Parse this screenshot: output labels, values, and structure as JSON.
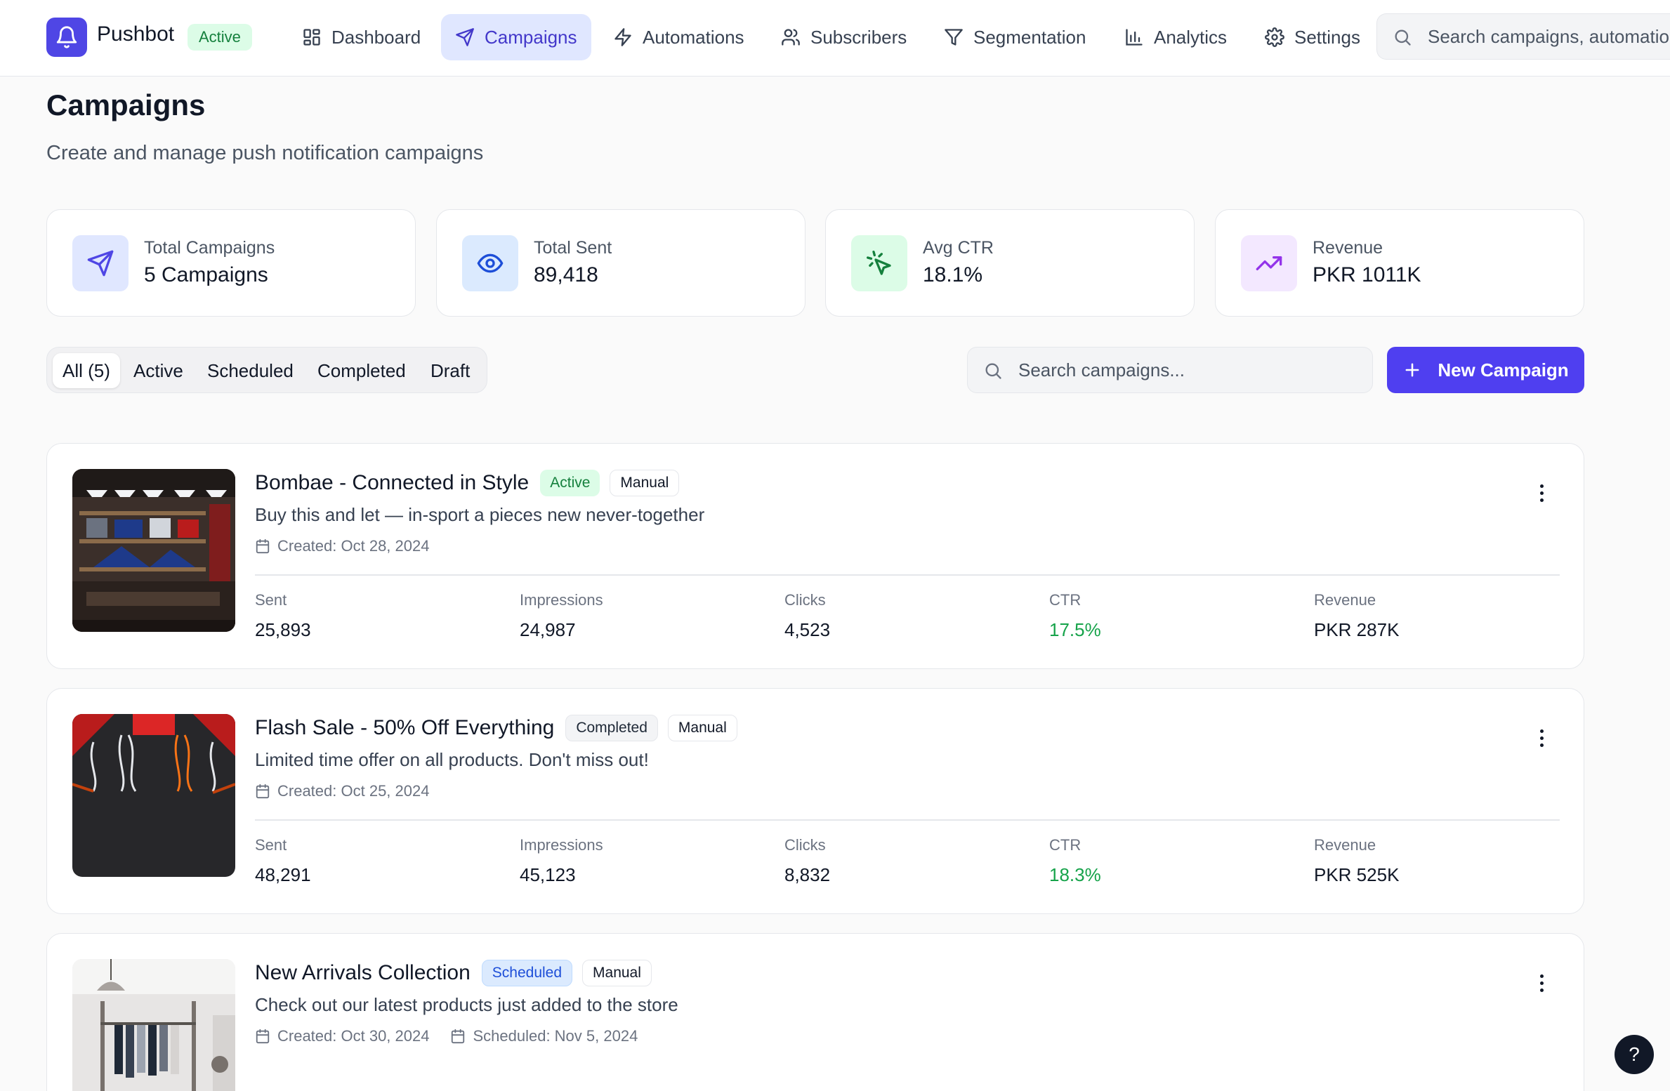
{
  "brand": {
    "name": "Pushbot",
    "status": "Active"
  },
  "nav": {
    "items": [
      {
        "label": "Dashboard",
        "icon": "dashboard-icon"
      },
      {
        "label": "Campaigns",
        "icon": "send-icon",
        "active": true
      },
      {
        "label": "Automations",
        "icon": "zap-icon"
      },
      {
        "label": "Subscribers",
        "icon": "users-icon"
      },
      {
        "label": "Segmentation",
        "icon": "filter-icon"
      },
      {
        "label": "Analytics",
        "icon": "bar-chart-icon"
      },
      {
        "label": "Settings",
        "icon": "gear-icon"
      }
    ],
    "search_placeholder": "Search campaigns, automations..."
  },
  "page": {
    "title": "Campaigns",
    "subtitle": "Create and manage push notification campaigns"
  },
  "stats": [
    {
      "label": "Total Campaigns",
      "value": "5 Campaigns",
      "icon": "send-icon",
      "color": "#4f46e5"
    },
    {
      "label": "Total Sent",
      "value": "89,418",
      "icon": "eye-icon",
      "color": "#1d4ed8"
    },
    {
      "label": "Avg CTR",
      "value": "18.1%",
      "icon": "pointer-click-icon",
      "color": "#15803d"
    },
    {
      "label": "Revenue",
      "value": "PKR 1011K",
      "icon": "trending-up-icon",
      "color": "#9333ea"
    }
  ],
  "filters": {
    "tabs": [
      "All (5)",
      "Active",
      "Scheduled",
      "Completed",
      "Draft"
    ],
    "active": "All (5)",
    "search_placeholder": "Search campaigns...",
    "new_button": "New Campaign"
  },
  "campaigns": [
    {
      "title": "Bombae - Connected in Style",
      "status": "Active",
      "type": "Manual",
      "description": "Buy this and let — in-sport a pieces new never-together",
      "created": "Created: Oct 28, 2024",
      "scheduled": "",
      "sent": "25,893",
      "impressions": "24,987",
      "clicks": "4,523",
      "ctr": "17.5%",
      "revenue": "PKR 287K"
    },
    {
      "title": "Flash Sale - 50% Off Everything",
      "status": "Completed",
      "type": "Manual",
      "description": "Limited time offer on all products. Don't miss out!",
      "created": "Created: Oct 25, 2024",
      "scheduled": "",
      "sent": "48,291",
      "impressions": "45,123",
      "clicks": "8,832",
      "ctr": "18.3%",
      "revenue": "PKR 525K"
    },
    {
      "title": "New Arrivals Collection",
      "status": "Scheduled",
      "type": "Manual",
      "description": "Check out our latest products just added to the store",
      "created": "Created: Oct 30, 2024",
      "scheduled": "Scheduled: Nov 5, 2024"
    }
  ],
  "stat_labels": {
    "sent": "Sent",
    "impressions": "Impressions",
    "clicks": "Clicks",
    "ctr": "CTR",
    "revenue": "Revenue"
  },
  "help": {
    "label": "?"
  }
}
